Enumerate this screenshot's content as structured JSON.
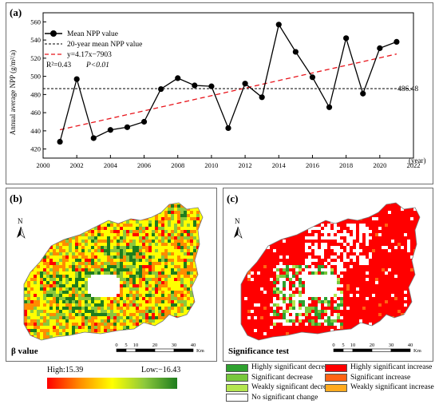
{
  "chart_data": {
    "type": "line",
    "panel_label": "(a)",
    "xlabel": "(year)",
    "ylabel": "Annual average NPP (g/m²/a)",
    "xlim": [
      2000,
      2022
    ],
    "ylim": [
      410,
      570
    ],
    "x_ticks": [
      2000,
      2002,
      2004,
      2006,
      2008,
      2010,
      2012,
      2014,
      2016,
      2018,
      2020,
      2022
    ],
    "y_ticks": [
      420,
      440,
      460,
      480,
      500,
      520,
      540,
      560
    ],
    "series": [
      {
        "name": "Mean NPP value",
        "color": "#000000",
        "x": [
          2001,
          2002,
          2003,
          2004,
          2005,
          2006,
          2007,
          2008,
          2009,
          2010,
          2011,
          2012,
          2013,
          2014,
          2015,
          2016,
          2017,
          2018,
          2019,
          2020,
          2021
        ],
        "y": [
          428,
          497,
          432,
          441,
          444,
          450,
          486,
          498,
          490,
          489,
          443,
          492,
          477,
          557,
          527,
          499,
          466,
          542,
          481,
          531,
          538
        ]
      }
    ],
    "mean_line": {
      "name": "20-year mean NPP value",
      "value": 486.48,
      "label": "486.48",
      "color": "#000000"
    },
    "trend_line": {
      "name": "y=4.17x−7903",
      "slope": 4.17,
      "intercept": -7903,
      "x_range": [
        2001,
        2021
      ],
      "color": "#e8141b"
    },
    "stats": {
      "r2": "R²=0.43",
      "p": "P<0.01"
    }
  },
  "maps": {
    "beta": {
      "panel_label": "(b)",
      "title": "β value",
      "colorbar": {
        "high": "High:15.39",
        "low": "Low:−16.43",
        "colors": [
          "#ff0000",
          "#ff8c00",
          "#ffff00",
          "#8cc83c",
          "#1e7d1e"
        ]
      }
    },
    "significance": {
      "panel_label": "(c)",
      "title": "Significance test"
    },
    "north": "N",
    "scale": {
      "ticks": [
        "0",
        "5",
        "10",
        "20",
        "30",
        "40"
      ],
      "unit": "Km"
    }
  },
  "legend": [
    {
      "label": "Highly significant decrease",
      "color": "#2ea12e"
    },
    {
      "label": "Highly significant increase",
      "color": "#ff0000"
    },
    {
      "label": "Significant decrease",
      "color": "#78c83c"
    },
    {
      "label": "Significant increase",
      "color": "#ff6414"
    },
    {
      "label": "Weakly significant decrease",
      "color": "#b4e650"
    },
    {
      "label": "Weakly significant increase",
      "color": "#ffaa1e"
    },
    {
      "label": "No significant change",
      "color": "#ffffff"
    }
  ]
}
